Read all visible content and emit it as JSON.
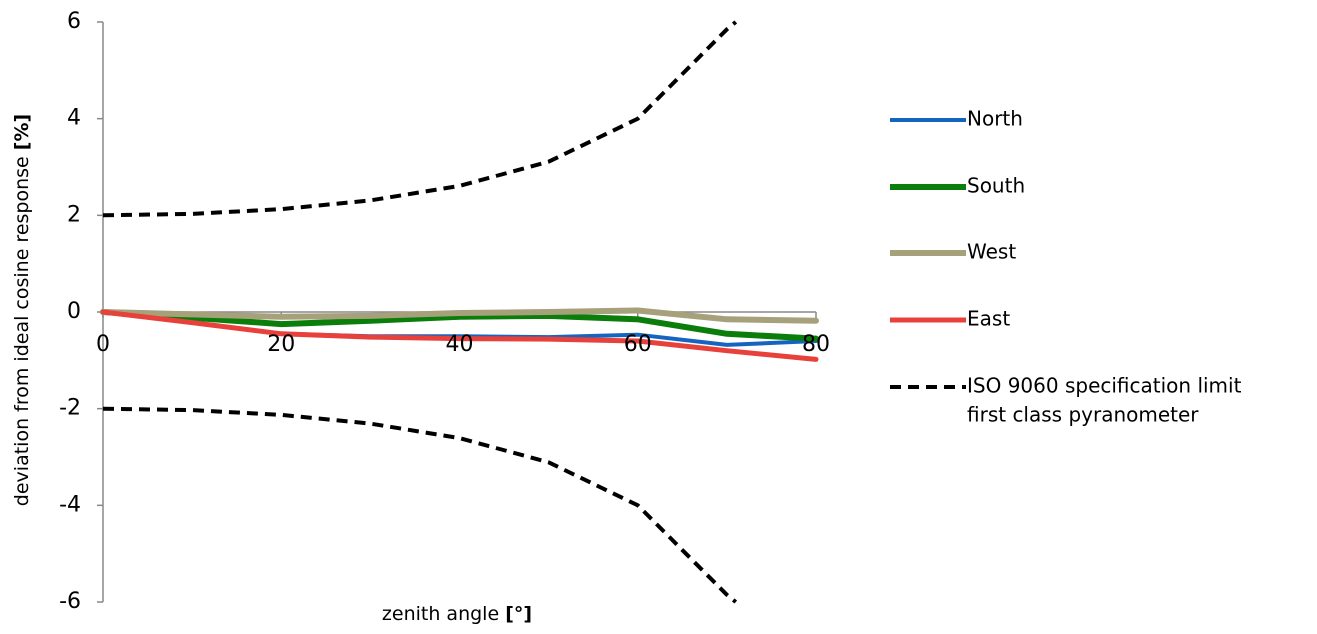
{
  "chart_data": {
    "type": "line",
    "title": "",
    "xlabel": "zenith angle",
    "xlabel_unit": "[°]",
    "ylabel": "deviation from ideal cosine response",
    "ylabel_unit": "[%]",
    "xlim": [
      0,
      80
    ],
    "ylim": [
      -6,
      6
    ],
    "x_ticks": [
      "0",
      "20",
      "40",
      "60",
      "80"
    ],
    "y_ticks": [
      "6",
      "4",
      "2",
      "0",
      "-2",
      "-4",
      "-6"
    ],
    "grid": false,
    "legend_position": "right",
    "series": [
      {
        "name": "North",
        "color": "#1565c0",
        "style": "solid",
        "x": [
          0,
          10,
          20,
          30,
          40,
          50,
          60,
          70,
          80
        ],
        "y": [
          0,
          -0.22,
          -0.45,
          -0.5,
          -0.5,
          -0.52,
          -0.47,
          -0.68,
          -0.6
        ]
      },
      {
        "name": "South",
        "color": "#0a7d0a",
        "style": "solid",
        "x": [
          0,
          10,
          20,
          30,
          40,
          50,
          60,
          70,
          80
        ],
        "y": [
          0,
          -0.12,
          -0.25,
          -0.18,
          -0.1,
          -0.08,
          -0.15,
          -0.45,
          -0.55
        ]
      },
      {
        "name": "West",
        "color": "#a6a07b",
        "style": "solid",
        "x": [
          0,
          10,
          20,
          30,
          40,
          50,
          60,
          70,
          80
        ],
        "y": [
          0,
          -0.05,
          -0.1,
          -0.08,
          -0.02,
          0.0,
          0.03,
          -0.15,
          -0.18
        ]
      },
      {
        "name": "East",
        "color": "#e8403a",
        "style": "solid",
        "x": [
          0,
          10,
          20,
          30,
          40,
          50,
          60,
          70,
          80
        ],
        "y": [
          0,
          -0.22,
          -0.45,
          -0.52,
          -0.55,
          -0.56,
          -0.6,
          -0.8,
          -0.98
        ]
      },
      {
        "name": "ISO 9060 specification limit first class pyranometer",
        "legend_lines": [
          "ISO 9060 specification limit",
          "first class pyranometer"
        ],
        "color": "#000000",
        "style": "dashed",
        "x": [
          0,
          10,
          20,
          30,
          40,
          50,
          60,
          70,
          71
        ],
        "y": [
          2,
          2.03,
          2.13,
          2.31,
          2.61,
          3.11,
          4.0,
          5.85,
          6.0
        ]
      },
      {
        "name": "ISO 9060 specification limit first class pyranometer (lower)",
        "color": "#000000",
        "style": "dashed",
        "legend": false,
        "x": [
          0,
          10,
          20,
          30,
          40,
          50,
          60,
          70,
          71
        ],
        "y": [
          -2,
          -2.03,
          -2.13,
          -2.31,
          -2.61,
          -3.11,
          -4.0,
          -5.85,
          -6.0
        ]
      }
    ]
  }
}
